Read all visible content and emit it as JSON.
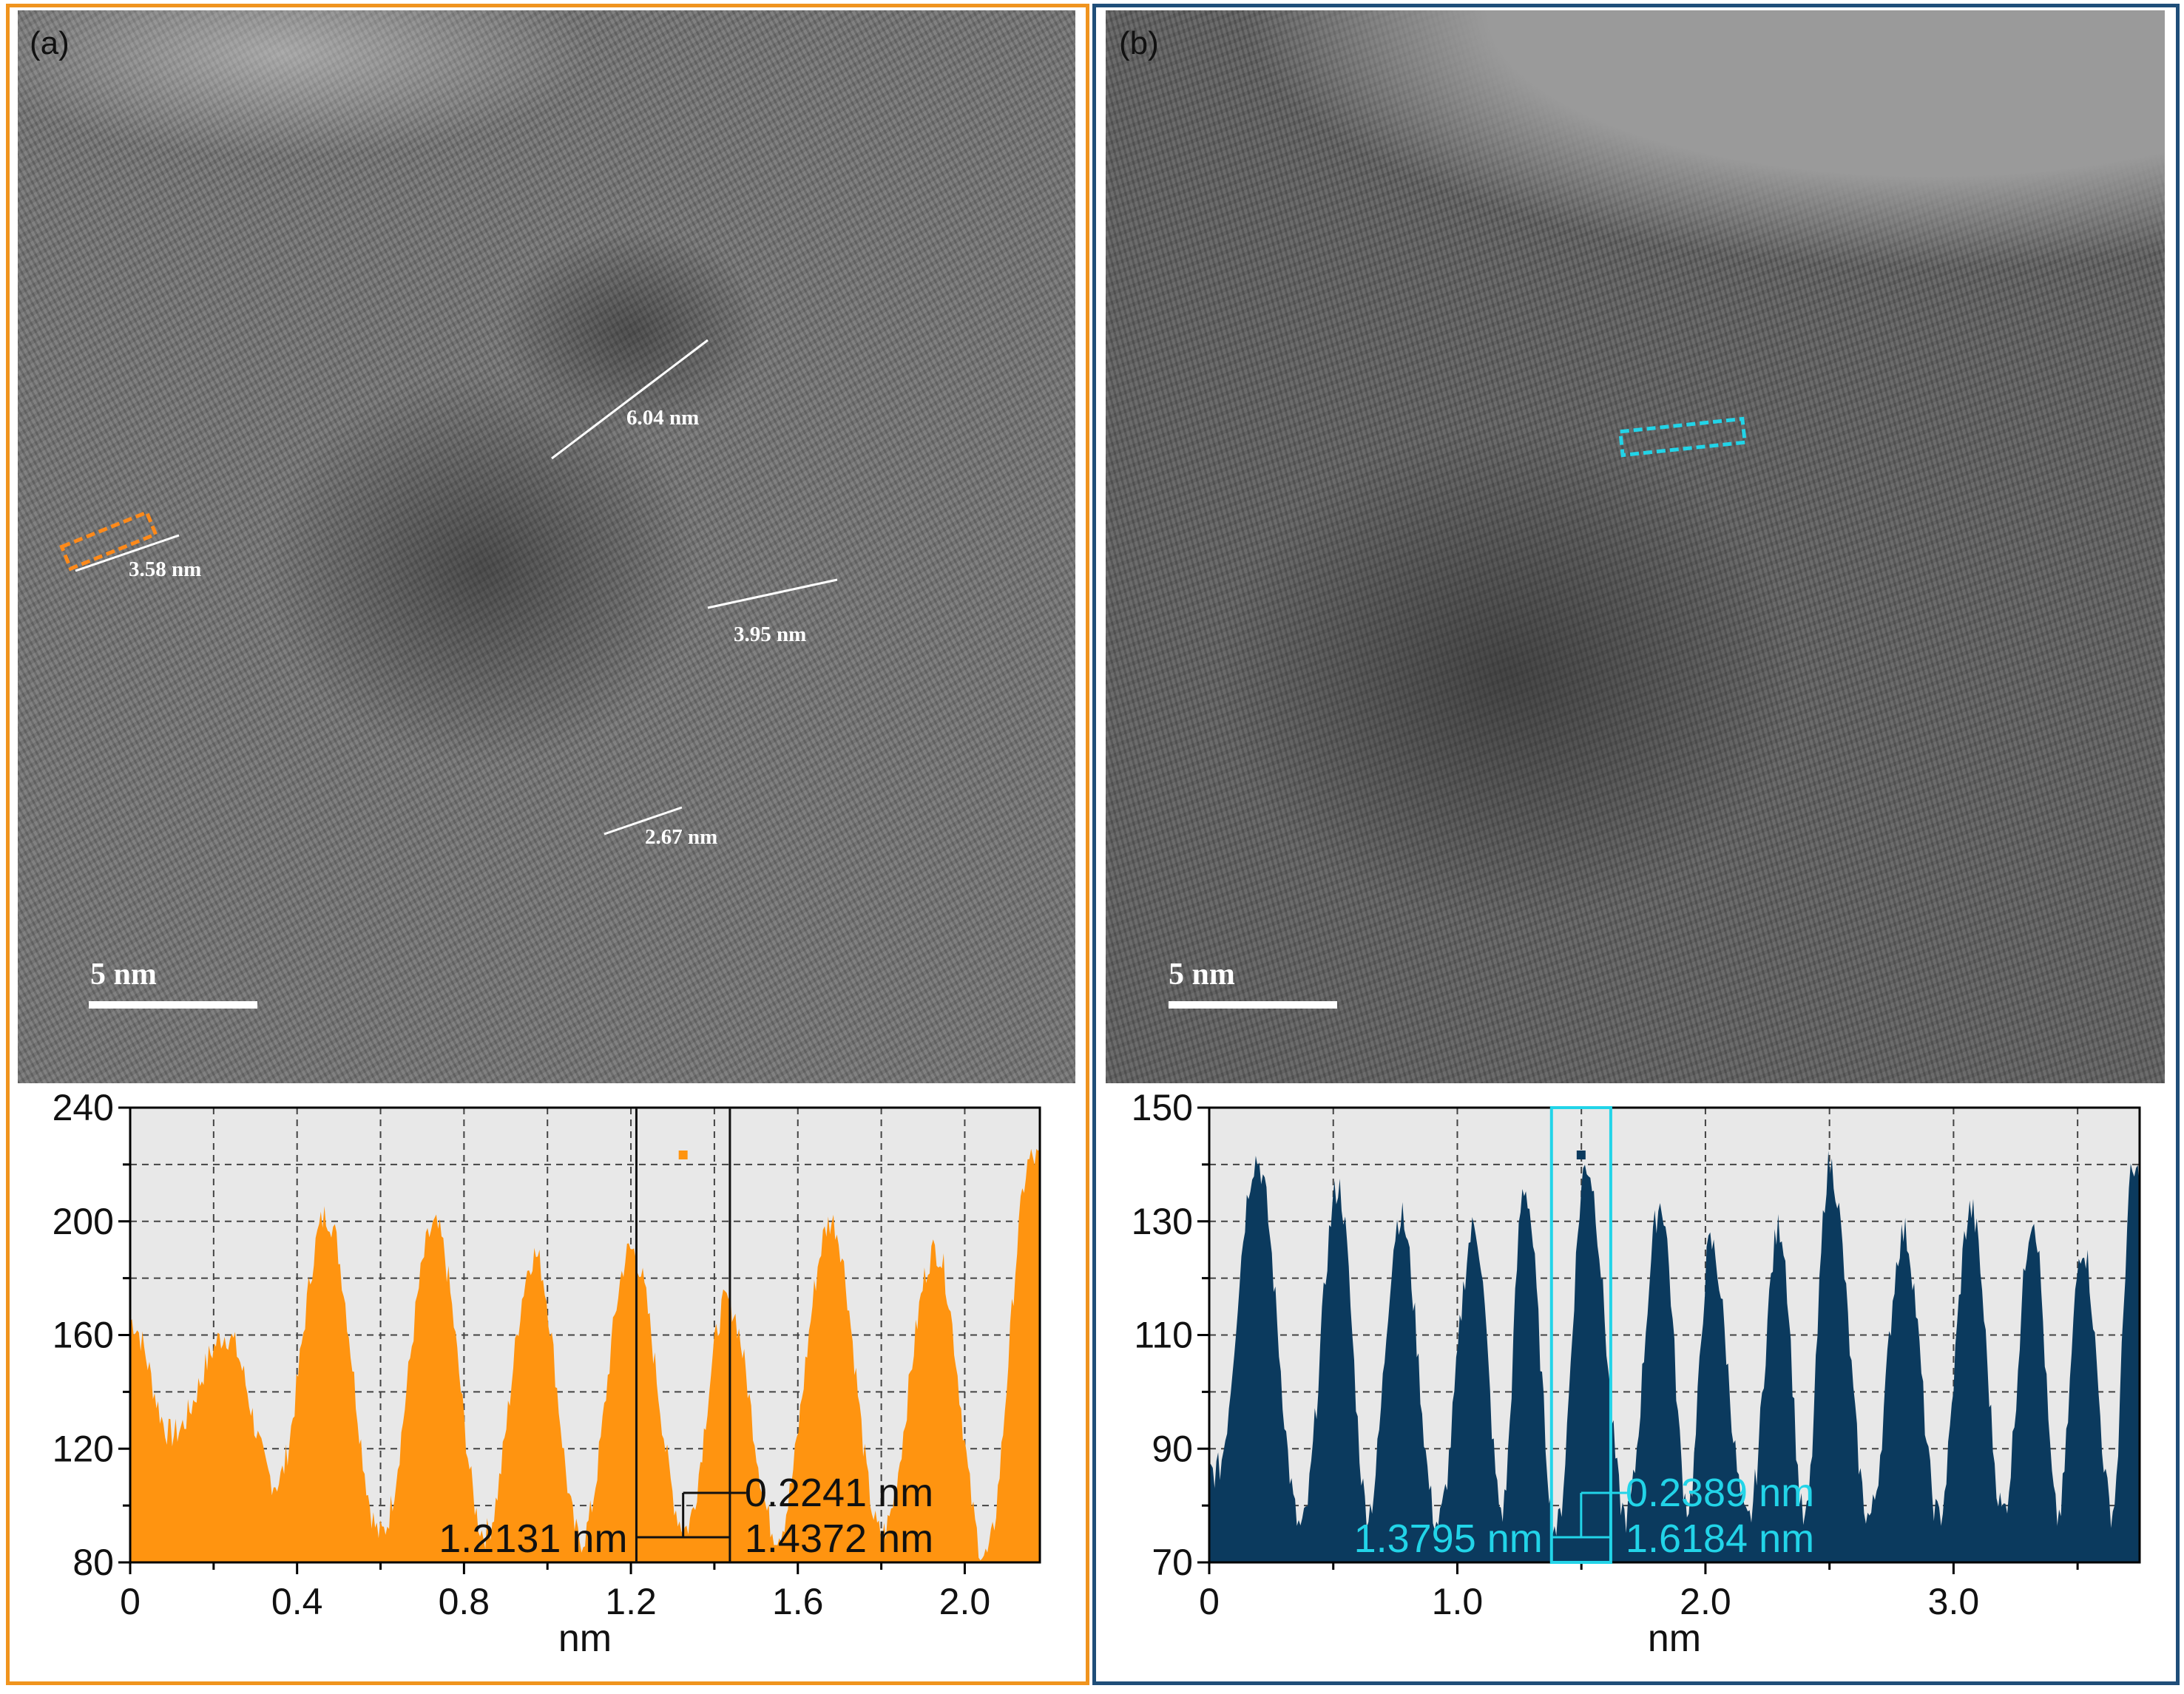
{
  "panel_a": {
    "label": "(a)",
    "scale_bar": "5 nm",
    "measurements": [
      "6.04 nm",
      "3.58 nm",
      "3.95 nm",
      "2.67 nm"
    ],
    "frame_color": "#f0941e"
  },
  "panel_b": {
    "label": "(b)",
    "scale_bar": "5 nm",
    "frame_color": "#1f4e79"
  },
  "chart_data": [
    {
      "type": "area",
      "panel": "a",
      "color": "#ff9410",
      "xlabel": "nm",
      "ylabel": "",
      "xlim": [
        0,
        2.18
      ],
      "ylim": [
        80,
        240
      ],
      "xticks": [
        "0",
        "0.4",
        "0.8",
        "1.2",
        "1.6",
        "2.0"
      ],
      "yticks": [
        "80",
        "120",
        "160",
        "200",
        "240"
      ],
      "peaks": [
        {
          "x": 0.0,
          "y": 165
        },
        {
          "x": 0.23,
          "y": 160
        },
        {
          "x": 0.47,
          "y": 202
        },
        {
          "x": 0.73,
          "y": 198
        },
        {
          "x": 0.97,
          "y": 188
        },
        {
          "x": 1.2,
          "y": 190
        },
        {
          "x": 1.43,
          "y": 172
        },
        {
          "x": 1.68,
          "y": 200
        },
        {
          "x": 1.93,
          "y": 190
        },
        {
          "x": 2.16,
          "y": 222
        }
      ],
      "valleys": [
        {
          "x": 0.1,
          "y": 125
        },
        {
          "x": 0.35,
          "y": 108
        },
        {
          "x": 0.6,
          "y": 90
        },
        {
          "x": 0.85,
          "y": 90
        },
        {
          "x": 1.08,
          "y": 88
        },
        {
          "x": 1.33,
          "y": 92
        },
        {
          "x": 1.55,
          "y": 90
        },
        {
          "x": 1.8,
          "y": 90
        },
        {
          "x": 2.05,
          "y": 82
        }
      ],
      "cursors": {
        "x1": 1.2131,
        "x2": 1.4372
      },
      "annotations": [
        "0.2241 nm",
        "1.2131 nm",
        "1.4372 nm"
      ]
    },
    {
      "type": "area",
      "panel": "b",
      "color": "#0b3a5e",
      "xlabel": "nm",
      "ylabel": "",
      "xlim": [
        0,
        3.75
      ],
      "ylim": [
        70,
        150
      ],
      "xticks": [
        "0",
        "1.0",
        "2.0",
        "3.0"
      ],
      "yticks": [
        "70",
        "90",
        "110",
        "130",
        "150"
      ],
      "peaks": [
        {
          "x": 0.19,
          "y": 141
        },
        {
          "x": 0.52,
          "y": 136
        },
        {
          "x": 0.77,
          "y": 131
        },
        {
          "x": 1.07,
          "y": 129
        },
        {
          "x": 1.27,
          "y": 136
        },
        {
          "x": 1.52,
          "y": 140
        },
        {
          "x": 1.82,
          "y": 133
        },
        {
          "x": 2.02,
          "y": 126
        },
        {
          "x": 2.3,
          "y": 129
        },
        {
          "x": 2.5,
          "y": 140
        },
        {
          "x": 2.8,
          "y": 128
        },
        {
          "x": 3.07,
          "y": 132
        },
        {
          "x": 3.32,
          "y": 131
        },
        {
          "x": 3.52,
          "y": 126
        },
        {
          "x": 3.72,
          "y": 138
        }
      ],
      "valleys": [
        {
          "x": 0.03,
          "y": 86
        },
        {
          "x": 0.37,
          "y": 76
        },
        {
          "x": 0.64,
          "y": 79
        },
        {
          "x": 0.92,
          "y": 77
        },
        {
          "x": 1.18,
          "y": 79
        },
        {
          "x": 1.4,
          "y": 76
        },
        {
          "x": 1.68,
          "y": 78
        },
        {
          "x": 1.93,
          "y": 80
        },
        {
          "x": 2.17,
          "y": 77
        },
        {
          "x": 2.4,
          "y": 77
        },
        {
          "x": 2.66,
          "y": 78
        },
        {
          "x": 2.94,
          "y": 78
        },
        {
          "x": 3.2,
          "y": 79
        },
        {
          "x": 3.42,
          "y": 78
        },
        {
          "x": 3.64,
          "y": 79
        }
      ],
      "cursors": {
        "x1": 1.3795,
        "x2": 1.6184
      },
      "annotations": [
        "0.2389 nm",
        "1.3795 nm",
        "1.6184 nm"
      ]
    }
  ]
}
